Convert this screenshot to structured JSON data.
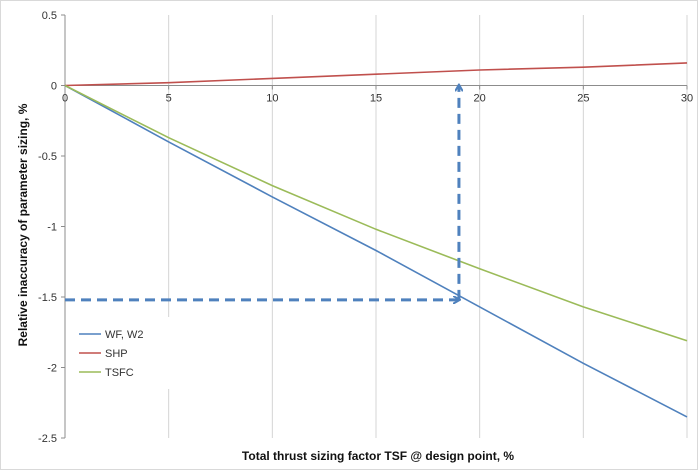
{
  "chart_data": {
    "type": "line",
    "xlabel": "Total thrust sizing factor TSF @ design point, %",
    "ylabel": "Relative inaccuracy  of  parameter sizing, %",
    "xlim": [
      0,
      30
    ],
    "ylim": [
      -2.5,
      0.5
    ],
    "x_ticks": [
      0,
      5,
      10,
      15,
      20,
      25,
      30
    ],
    "y_ticks": [
      0.5,
      0,
      -0.5,
      -1,
      -1.5,
      -2,
      -2.5
    ],
    "grid": "vertical",
    "legend_position": "bottom-left",
    "series": [
      {
        "name": "WF, W2",
        "color": "#4f81bd",
        "x": [
          0,
          5,
          10,
          15,
          20,
          25,
          30
        ],
        "y": [
          0,
          -0.4,
          -0.79,
          -1.17,
          -1.57,
          -1.97,
          -2.35
        ]
      },
      {
        "name": "SHP",
        "color": "#c0504d",
        "x": [
          0,
          5,
          10,
          15,
          20,
          25,
          30
        ],
        "y": [
          0,
          0.02,
          0.05,
          0.08,
          0.11,
          0.13,
          0.16
        ]
      },
      {
        "name": "TSFC",
        "color": "#9bbb59",
        "x": [
          0,
          5,
          10,
          15,
          20,
          25,
          30
        ],
        "y": [
          0,
          -0.37,
          -0.71,
          -1.02,
          -1.3,
          -1.57,
          -1.81
        ]
      }
    ],
    "annotations": [
      {
        "type": "dashed-arrow",
        "color": "#4f81bd",
        "from": [
          0,
          -1.52
        ],
        "to": [
          19,
          -1.52
        ]
      },
      {
        "type": "dashed-arrow",
        "color": "#4f81bd",
        "from": [
          19,
          -1.52
        ],
        "to": [
          19,
          0
        ]
      }
    ]
  }
}
